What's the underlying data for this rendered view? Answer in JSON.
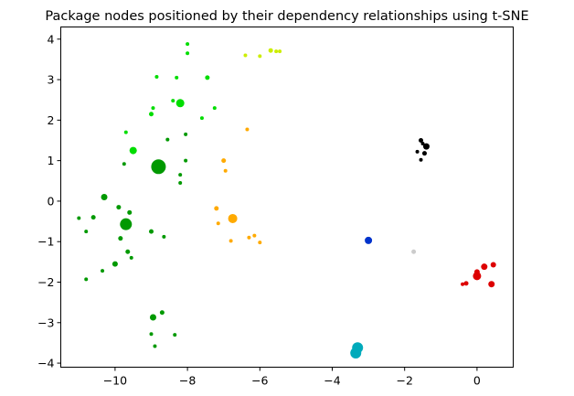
{
  "chart_data": {
    "type": "scatter",
    "title": "Package nodes positioned by their dependency relationships using t-SNE",
    "xlabel": "",
    "ylabel": "",
    "xlim": [
      -11.5,
      1.0
    ],
    "ylim": [
      -4.1,
      4.3
    ],
    "grid": false,
    "x_ticks": [
      -10,
      -8,
      -6,
      -4,
      -2,
      0
    ],
    "x_tick_labels": [
      "−10",
      "−8",
      "−6",
      "−4",
      "−2",
      "0"
    ],
    "y_ticks": [
      -4,
      -3,
      -2,
      -1,
      0,
      1,
      2,
      3,
      4
    ],
    "y_tick_labels": [
      "−4",
      "−3",
      "−2",
      "−1",
      "0",
      "1",
      "2",
      "3",
      "4"
    ],
    "points": [
      {
        "x": -8.8,
        "y": 0.85,
        "size": 8,
        "color": "#009900"
      },
      {
        "x": -9.7,
        "y": -0.57,
        "size": 6.5,
        "color": "#009900"
      },
      {
        "x": -10.3,
        "y": 0.1,
        "size": 3.5,
        "color": "#009900"
      },
      {
        "x": -10.0,
        "y": -1.55,
        "size": 3,
        "color": "#009900"
      },
      {
        "x": -8.95,
        "y": -2.87,
        "size": 3.5,
        "color": "#009900"
      },
      {
        "x": -11.0,
        "y": -0.42,
        "size": 2,
        "color": "#009900"
      },
      {
        "x": -10.6,
        "y": -0.4,
        "size": 2.5,
        "color": "#009900"
      },
      {
        "x": -10.8,
        "y": -0.75,
        "size": 2,
        "color": "#009900"
      },
      {
        "x": -9.9,
        "y": -0.15,
        "size": 2.5,
        "color": "#009900"
      },
      {
        "x": -9.6,
        "y": -0.28,
        "size": 2.5,
        "color": "#009900"
      },
      {
        "x": -9.85,
        "y": -0.92,
        "size": 2.5,
        "color": "#009900"
      },
      {
        "x": -9.65,
        "y": -1.25,
        "size": 2.5,
        "color": "#009900"
      },
      {
        "x": -9.55,
        "y": -1.4,
        "size": 2,
        "color": "#009900"
      },
      {
        "x": -10.35,
        "y": -1.72,
        "size": 2,
        "color": "#009900"
      },
      {
        "x": -10.8,
        "y": -1.93,
        "size": 2,
        "color": "#009900"
      },
      {
        "x": -9.0,
        "y": -0.75,
        "size": 2.5,
        "color": "#009900"
      },
      {
        "x": -8.65,
        "y": -0.88,
        "size": 2,
        "color": "#009900"
      },
      {
        "x": -9.75,
        "y": 0.92,
        "size": 2,
        "color": "#009900"
      },
      {
        "x": -8.7,
        "y": -2.75,
        "size": 2.5,
        "color": "#009900"
      },
      {
        "x": -9.0,
        "y": -3.28,
        "size": 2,
        "color": "#009900"
      },
      {
        "x": -8.9,
        "y": -3.58,
        "size": 2,
        "color": "#009900"
      },
      {
        "x": -8.35,
        "y": -3.3,
        "size": 2,
        "color": "#009900"
      },
      {
        "x": -8.55,
        "y": 1.52,
        "size": 2,
        "color": "#009900"
      },
      {
        "x": -8.2,
        "y": 0.65,
        "size": 2,
        "color": "#009900"
      },
      {
        "x": -8.2,
        "y": 0.45,
        "size": 2,
        "color": "#009900"
      },
      {
        "x": -8.05,
        "y": 1.0,
        "size": 2,
        "color": "#009900"
      },
      {
        "x": -8.05,
        "y": 1.65,
        "size": 2,
        "color": "#009900"
      },
      {
        "x": -9.5,
        "y": 1.25,
        "size": 4,
        "color": "#00dd00"
      },
      {
        "x": -8.2,
        "y": 2.42,
        "size": 4.5,
        "color": "#00dd00"
      },
      {
        "x": -9.0,
        "y": 2.15,
        "size": 2.5,
        "color": "#00dd00"
      },
      {
        "x": -8.95,
        "y": 2.3,
        "size": 2,
        "color": "#00dd00"
      },
      {
        "x": -9.7,
        "y": 1.7,
        "size": 2,
        "color": "#00dd00"
      },
      {
        "x": -8.4,
        "y": 2.48,
        "size": 2,
        "color": "#00dd00"
      },
      {
        "x": -7.45,
        "y": 3.05,
        "size": 2.5,
        "color": "#00dd00"
      },
      {
        "x": -7.25,
        "y": 2.3,
        "size": 2,
        "color": "#00dd00"
      },
      {
        "x": -7.6,
        "y": 2.05,
        "size": 2,
        "color": "#00dd00"
      },
      {
        "x": -8.85,
        "y": 3.07,
        "size": 2,
        "color": "#00dd00"
      },
      {
        "x": -8.3,
        "y": 3.05,
        "size": 2,
        "color": "#00dd00"
      },
      {
        "x": -8.0,
        "y": 3.88,
        "size": 2,
        "color": "#00dd00"
      },
      {
        "x": -8.0,
        "y": 3.65,
        "size": 2,
        "color": "#00dd00"
      },
      {
        "x": -5.7,
        "y": 3.72,
        "size": 2.5,
        "color": "#ccee00"
      },
      {
        "x": -5.45,
        "y": 3.7,
        "size": 2,
        "color": "#ccee00"
      },
      {
        "x": -5.55,
        "y": 3.7,
        "size": 2,
        "color": "#ccee00"
      },
      {
        "x": -6.4,
        "y": 3.6,
        "size": 2,
        "color": "#ccee00"
      },
      {
        "x": -6.0,
        "y": 3.58,
        "size": 2,
        "color": "#ccee00"
      },
      {
        "x": -6.75,
        "y": -0.43,
        "size": 5,
        "color": "#ffaa00"
      },
      {
        "x": -7.0,
        "y": 1.0,
        "size": 2.5,
        "color": "#ffaa00"
      },
      {
        "x": -6.95,
        "y": 0.75,
        "size": 2,
        "color": "#ffaa00"
      },
      {
        "x": -6.35,
        "y": 1.77,
        "size": 2,
        "color": "#ffaa00"
      },
      {
        "x": -7.2,
        "y": -0.18,
        "size": 2.5,
        "color": "#ffaa00"
      },
      {
        "x": -7.15,
        "y": -0.55,
        "size": 2,
        "color": "#ffaa00"
      },
      {
        "x": -6.8,
        "y": -0.98,
        "size": 2,
        "color": "#ffaa00"
      },
      {
        "x": -6.3,
        "y": -0.9,
        "size": 2,
        "color": "#ffaa00"
      },
      {
        "x": -6.15,
        "y": -0.85,
        "size": 2,
        "color": "#ffaa00"
      },
      {
        "x": -6.0,
        "y": -1.02,
        "size": 2,
        "color": "#ffaa00"
      },
      {
        "x": -3.0,
        "y": -0.97,
        "size": 4,
        "color": "#0033cc"
      },
      {
        "x": -1.75,
        "y": -1.25,
        "size": 2.5,
        "color": "#cccccc"
      },
      {
        "x": -1.4,
        "y": 1.35,
        "size": 3.5,
        "color": "#000000"
      },
      {
        "x": -1.55,
        "y": 1.5,
        "size": 2.5,
        "color": "#000000"
      },
      {
        "x": -1.5,
        "y": 1.42,
        "size": 2,
        "color": "#000000"
      },
      {
        "x": -1.65,
        "y": 1.22,
        "size": 2,
        "color": "#000000"
      },
      {
        "x": -1.45,
        "y": 1.18,
        "size": 2.5,
        "color": "#000000"
      },
      {
        "x": -1.55,
        "y": 1.02,
        "size": 2,
        "color": "#000000"
      },
      {
        "x": 0.0,
        "y": -1.85,
        "size": 4.5,
        "color": "#dd0000"
      },
      {
        "x": 0.2,
        "y": -1.62,
        "size": 3.5,
        "color": "#dd0000"
      },
      {
        "x": 0.4,
        "y": -2.05,
        "size": 3.5,
        "color": "#dd0000"
      },
      {
        "x": 0.45,
        "y": -1.57,
        "size": 3,
        "color": "#dd0000"
      },
      {
        "x": 0.0,
        "y": -1.75,
        "size": 3,
        "color": "#dd0000"
      },
      {
        "x": -0.3,
        "y": -2.03,
        "size": 2.5,
        "color": "#dd0000"
      },
      {
        "x": -0.4,
        "y": -2.05,
        "size": 2,
        "color": "#dd0000"
      },
      {
        "x": -3.3,
        "y": -3.62,
        "size": 6,
        "color": "#00aabb"
      },
      {
        "x": -3.35,
        "y": -3.75,
        "size": 6,
        "color": "#00aabb"
      }
    ]
  }
}
